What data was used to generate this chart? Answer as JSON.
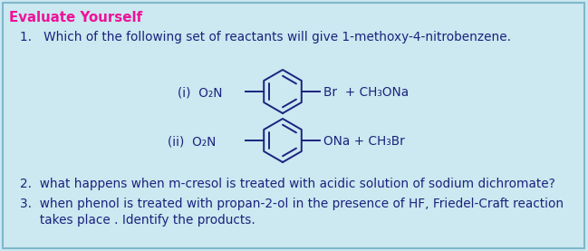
{
  "bg_color": "#cce8f0",
  "border_color": "#7fb8cc",
  "title": "Evaluate Yourself",
  "title_color": "#ee1199",
  "text_color": "#1a237e",
  "q1": "1.   Which of the following set of reactants will give 1-methoxy-4-nitrobenzene.",
  "q2": "2.  what happens when m-cresol is treated with acidic solution of sodium dichromate?",
  "q3_line1": "3.  when phenol is treated with propan-2-ol in the presence of HF, Friedel-Craft reaction",
  "q3_line2": "     takes place . Identify the products.",
  "label_i": "(i)  O₂N",
  "label_ii": "(ii)  O₂N",
  "react_i": "Br  + CH₃ONa",
  "react_ii": "ONa + CH₃Br",
  "ring_color": "#1a237e",
  "font_size": 9.8
}
